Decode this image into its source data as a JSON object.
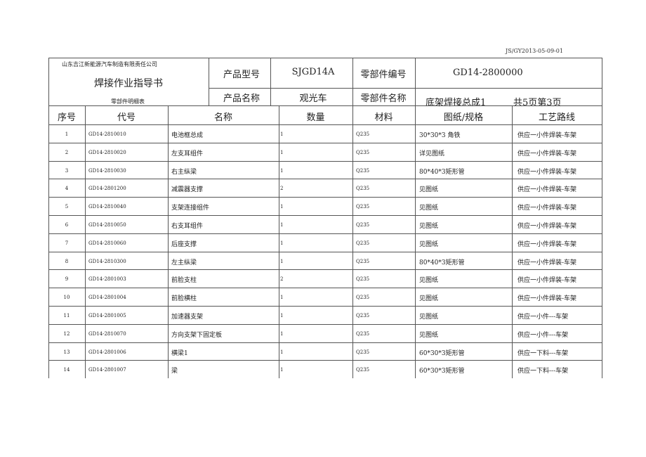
{
  "doc_number": "JS/GY2013-05-09-01",
  "header": {
    "company": "山东吉江新能源汽车制造有限责任公司",
    "doc_title": "焊接作业指导书",
    "subtitle": "零部件明细表",
    "product_model_label": "产品型号",
    "product_model": "SJGD14A",
    "part_number_label": "零部件编号",
    "part_number": "GD14-2800000",
    "product_name_label": "产品名称",
    "product_name": "观光车",
    "part_name_label": "零部件名称",
    "part_name": "底架焊接总成1",
    "page_info": "共5页第3页"
  },
  "columns": [
    "序号",
    "代号",
    "名称",
    "数量",
    "材料",
    "图纸/规格",
    "工艺路线"
  ],
  "rows": [
    [
      "1",
      "GD14-2810010",
      "电池框总成",
      "1",
      "Q235",
      "30*30*3 角铁",
      "供应一小件焊装-车架"
    ],
    [
      "2",
      "GD14-2810020",
      "左支耳组件",
      "1",
      "Q235",
      "详见图纸",
      "供应一小件焊装-车架"
    ],
    [
      "3",
      "GD14-2810030",
      "右主纵梁",
      "1",
      "Q235",
      "80*40*3矩形管",
      "供应一小件焊装-车架"
    ],
    [
      "4",
      "GD14-2801200",
      "减震器支撑",
      "2",
      "Q235",
      "见图纸",
      "供应一小件焊装-车架"
    ],
    [
      "5",
      "GD14-2810040",
      "支架连接组件",
      "1",
      "Q235",
      "见图纸",
      "供应一小件焊装-车架"
    ],
    [
      "6",
      "GD14-2810050",
      "右支耳组件",
      "1",
      "Q235",
      "见图纸",
      "供应一小件焊装-车架"
    ],
    [
      "7",
      "GD14-2810060",
      "后座支撑",
      "1",
      "Q235",
      "见图纸",
      "供应一小件焊装-车架"
    ],
    [
      "8",
      "GD14-2810300",
      "左主纵梁",
      "1",
      "Q235",
      "80*40*3矩形管",
      "供应一小件焊装-车架"
    ],
    [
      "9",
      "GD14-2801003",
      "前脸支柱",
      "2",
      "Q235",
      "见图纸",
      "供应一小件焊装-车架"
    ],
    [
      "10",
      "GD14-2801004",
      "前脸横柱",
      "1",
      "Q235",
      "见图纸",
      "供应一小件焊装-车架"
    ],
    [
      "11",
      "GD14-2801005",
      "加速器支架",
      "1",
      "Q235",
      "见图纸",
      "供应一小件---车架"
    ],
    [
      "12",
      "GD14-2810070",
      "方向支架下固定板",
      "1",
      "Q235",
      "见图纸",
      "供应一小件---车架"
    ],
    [
      "13",
      "GD14-2801006",
      "横梁1",
      "1",
      "Q235",
      "60*30*3矩形管",
      "供应一下料---车架"
    ],
    [
      "14",
      "GD14-2801007",
      "梁",
      "1",
      "Q235",
      "60*30*3矩形管",
      "供应一下料---车架"
    ]
  ]
}
